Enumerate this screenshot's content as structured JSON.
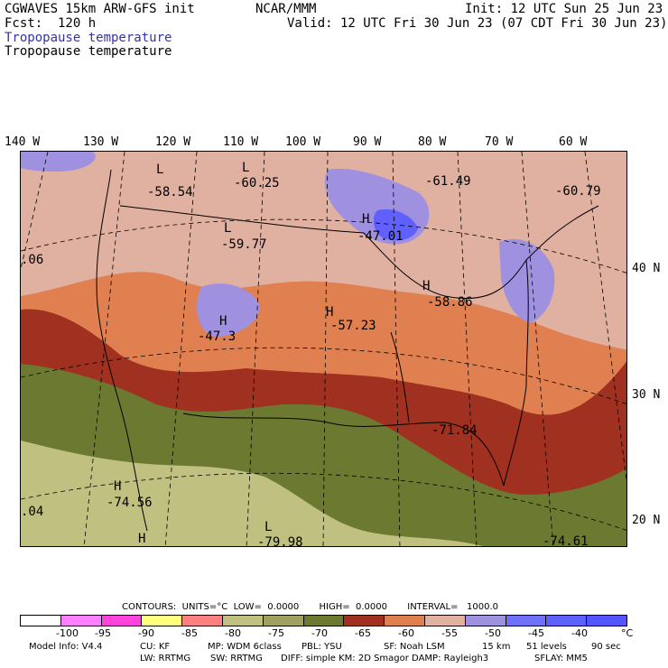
{
  "header": {
    "model": "CGWAVES 15km ARW-GFS init",
    "forecast": "Fcst:  120 h",
    "center": "NCAR/MMM",
    "init": "Init: 12 UTC Sun 25 Jun 23",
    "valid": "Valid: 12 UTC Fri 30 Jun 23 (07 CDT Fri 30 Jun 23)",
    "field_title_colored": "Tropopause temperature",
    "field_title": "Tropopause temperature",
    "title_color": "#3333aa"
  },
  "longitudes": [
    "140 W",
    "130 W",
    "120 W",
    "110 W",
    "100 W",
    "90 W",
    "80 W",
    "70 W",
    "60 W"
  ],
  "latitudes": [
    "40 N",
    "30 N",
    "20 N"
  ],
  "map": {
    "labels": [
      {
        "text": "L",
        "kind": "low"
      },
      {
        "text": "-58.54",
        "kind": "value"
      },
      {
        "text": "L",
        "kind": "low"
      },
      {
        "text": "-60.25",
        "kind": "value"
      },
      {
        "text": "L",
        "kind": "low"
      },
      {
        "text": "-59.77",
        "kind": "value"
      },
      {
        "text": "H",
        "kind": "high"
      },
      {
        "text": "-47.01",
        "kind": "value"
      },
      {
        "text": "-61.49",
        "kind": "value"
      },
      {
        "text": "-60.79",
        "kind": "value"
      },
      {
        "text": ".06",
        "kind": "value"
      },
      {
        "text": "H",
        "kind": "high"
      },
      {
        "text": "-58.86",
        "kind": "value"
      },
      {
        "text": "H",
        "kind": "high"
      },
      {
        "text": "-57.23",
        "kind": "value"
      },
      {
        "text": "H",
        "kind": "high"
      },
      {
        "text": "-47.3",
        "kind": "value"
      },
      {
        "text": "-71.84",
        "kind": "value"
      },
      {
        "text": "H",
        "kind": "high"
      },
      {
        "text": "-74.56",
        "kind": "value"
      },
      {
        "text": ".04",
        "kind": "value"
      },
      {
        "text": "L",
        "kind": "low"
      },
      {
        "text": "-79.98",
        "kind": "value"
      },
      {
        "text": "H",
        "kind": "high"
      },
      {
        "text": "-74.61",
        "kind": "value"
      }
    ]
  },
  "contours_line": "CONTOURS:  UNITS=°C  LOW=  0.0000       HIGH=  0.0000       INTERVAL=   1000.0",
  "legend": {
    "colors": [
      "#ffffff",
      "#ff80ff",
      "#ff44dd",
      "#ffff80",
      "#ff8080",
      "#c0c080",
      "#a0a060",
      "#6b7a30",
      "#a03020",
      "#e08050",
      "#e0b0a0",
      "#a090e0",
      "#7070ff",
      "#6060ff",
      "#5555ff"
    ],
    "ticks": [
      "-100",
      "-95",
      "-90",
      "-85",
      "-80",
      "-75",
      "-70",
      "-65",
      "-60",
      "-55",
      "-50",
      "-45",
      "-40",
      "°C"
    ]
  },
  "footer": {
    "line1_a": "Model Info: V4.4",
    "line1_b": "CU: KF",
    "line1_c": "MP: WDM 6class",
    "line1_d": "PBL: YSU",
    "line1_e": "SF: Noah LSM",
    "line1_f": "15 km",
    "line1_g": "51 levels",
    "line1_h": "90 sec",
    "line2_a": "LW: RRTMG",
    "line2_b": "SW: RRTMG",
    "line2_c": "DIFF: simple KM: 2D Smagor DAMP: Rayleigh3",
    "line2_d": "SFLAY: MM5"
  }
}
